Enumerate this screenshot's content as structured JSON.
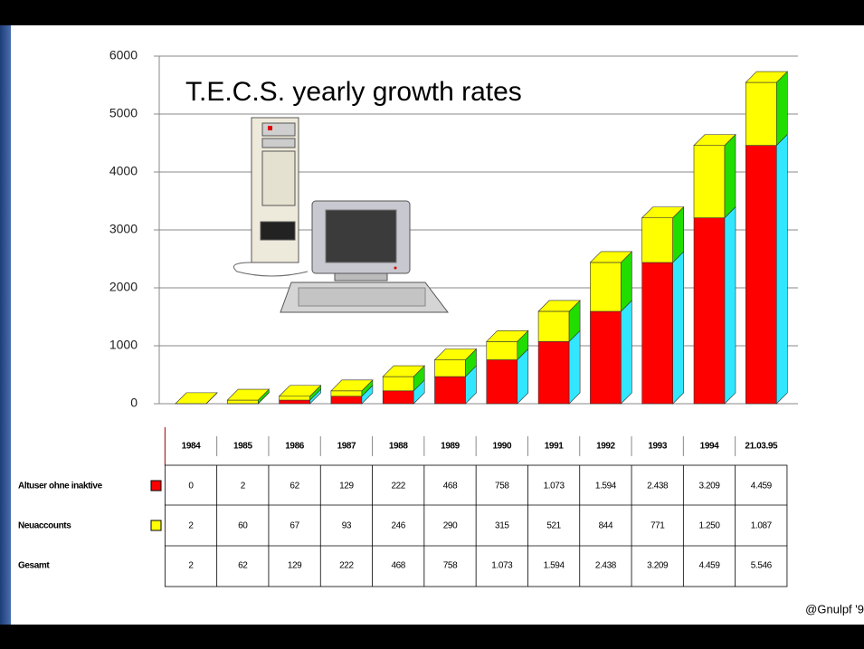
{
  "chart_data": {
    "type": "bar3d-stacked",
    "title": "T.E.C.S. yearly growth rates",
    "categories": [
      "1984",
      "1985",
      "1986",
      "1987",
      "1988",
      "1989",
      "1990",
      "1991",
      "1992",
      "1993",
      "1994",
      "21.03.95"
    ],
    "series": [
      {
        "name": "Altuser ohne inaktive",
        "color": "#ff0000",
        "side_color": "#33e6ff",
        "values": [
          0,
          2,
          62,
          129,
          222,
          468,
          758,
          1073,
          1594,
          2438,
          3209,
          4459
        ],
        "value_labels": [
          "0",
          "2",
          "62",
          "129",
          "222",
          "468",
          "758",
          "1.073",
          "1.594",
          "2.438",
          "3.209",
          "4.459"
        ]
      },
      {
        "name": "Neuaccounts",
        "color": "#ffff00",
        "side_color": "#22dd00",
        "values": [
          2,
          60,
          67,
          93,
          246,
          290,
          315,
          521,
          844,
          771,
          1250,
          1087
        ],
        "value_labels": [
          "2",
          "60",
          "67",
          "93",
          "246",
          "290",
          "315",
          "521",
          "844",
          "771",
          "1.250",
          "1.087"
        ]
      }
    ],
    "total_row": {
      "name": "Gesamt",
      "cells": [
        "2",
        "62",
        "129",
        "222",
        "468",
        "758",
        "1.073",
        "1.594",
        "2.438",
        "3.209",
        "4.459",
        "5.546"
      ]
    },
    "ylim": [
      0,
      6000
    ],
    "yticks": [
      0,
      1000,
      2000,
      3000,
      4000,
      5000,
      6000
    ],
    "grid": true,
    "footer": "@Gnulpf '9"
  }
}
